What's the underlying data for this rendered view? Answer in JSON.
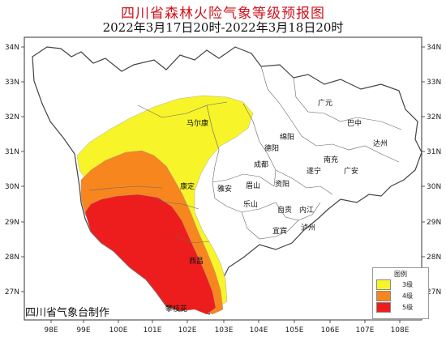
{
  "title": "四川省森林火险气象等级预报图",
  "subtitle": "2022年3月17日20时-2022年3月18日20时",
  "credit": "四川省气象台制作",
  "colors": {
    "level3": "#f8f42a",
    "level4": "#f7861f",
    "level5": "#ee1d1d",
    "boundary": "#555555",
    "frame": "#333333"
  },
  "legend": {
    "title": "图例",
    "items": [
      {
        "label": "3级",
        "color": "#f8f42a"
      },
      {
        "label": "4级",
        "color": "#f7861f"
      },
      {
        "label": "5级",
        "color": "#ee1d1d"
      }
    ]
  },
  "lon_ticks": [
    "98E",
    "99E",
    "100E",
    "101E",
    "102E",
    "103E",
    "104E",
    "105E",
    "106E",
    "107E",
    "108E"
  ],
  "lat_ticks": [
    "34N",
    "33N",
    "32N",
    "31N",
    "30N",
    "29N",
    "28N",
    "27N"
  ],
  "cities": {
    "guangyuan": "广元",
    "maerkang": "马尔康",
    "bazhong": "巴中",
    "mianyang": "绵阳",
    "dazhou": "达州",
    "deyang": "德阳",
    "nanchong": "南充",
    "chengdu": "成都",
    "suining": "遂宁",
    "guangan": "广安",
    "kangding": "康定",
    "yaan": "雅安",
    "meishan": "眉山",
    "ziyang": "资阳",
    "leshan": "乐山",
    "zigong": "自贡",
    "neijiang": "内江",
    "luzhou": "泸州",
    "yibin": "宜宾",
    "xichang": "西昌",
    "panzhihua": "攀枝花"
  }
}
